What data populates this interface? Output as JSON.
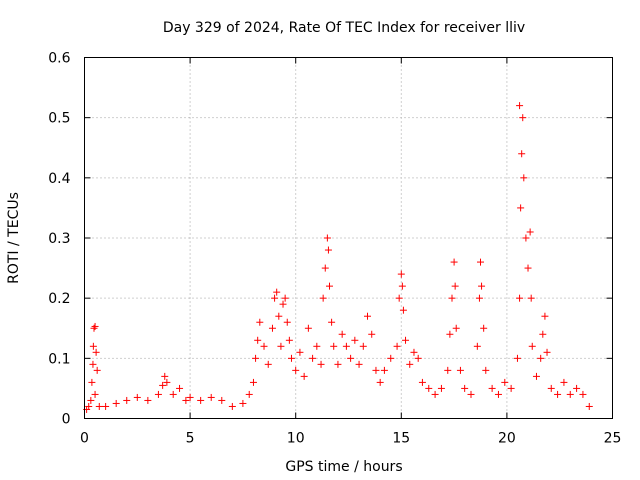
{
  "chart_data": {
    "type": "scatter",
    "title": "Day 329 of 2024, Rate Of TEC Index for receiver lliv",
    "xlabel": "GPS time / hours",
    "ylabel": "ROTI / TECUs",
    "xlim": [
      0,
      25
    ],
    "ylim": [
      0,
      0.6
    ],
    "x_ticks": [
      "0",
      "5",
      "10",
      "15",
      "20",
      "25"
    ],
    "y_ticks": [
      "0",
      "0.1",
      "0.2",
      "0.3",
      "0.4",
      "0.5",
      "0.6"
    ],
    "grid": true,
    "marker": "+",
    "color": "#ff0000",
    "series": [
      {
        "name": "ROTI",
        "points": [
          [
            0.1,
            0.015
          ],
          [
            0.2,
            0.02
          ],
          [
            0.3,
            0.03
          ],
          [
            0.35,
            0.06
          ],
          [
            0.4,
            0.09
          ],
          [
            0.42,
            0.12
          ],
          [
            0.45,
            0.15
          ],
          [
            0.5,
            0.153
          ],
          [
            0.55,
            0.11
          ],
          [
            0.6,
            0.08
          ],
          [
            0.5,
            0.04
          ],
          [
            0.7,
            0.02
          ],
          [
            1.0,
            0.02
          ],
          [
            1.5,
            0.025
          ],
          [
            2.0,
            0.03
          ],
          [
            2.5,
            0.035
          ],
          [
            3.0,
            0.03
          ],
          [
            3.5,
            0.04
          ],
          [
            3.7,
            0.055
          ],
          [
            3.8,
            0.07
          ],
          [
            3.9,
            0.06
          ],
          [
            4.2,
            0.04
          ],
          [
            4.5,
            0.05
          ],
          [
            4.8,
            0.03
          ],
          [
            5.0,
            0.035
          ],
          [
            5.5,
            0.03
          ],
          [
            6.0,
            0.035
          ],
          [
            6.5,
            0.03
          ],
          [
            7.0,
            0.02
          ],
          [
            7.5,
            0.025
          ],
          [
            7.8,
            0.04
          ],
          [
            8.0,
            0.06
          ],
          [
            8.1,
            0.1
          ],
          [
            8.2,
            0.13
          ],
          [
            8.3,
            0.16
          ],
          [
            8.5,
            0.12
          ],
          [
            8.7,
            0.09
          ],
          [
            8.9,
            0.15
          ],
          [
            9.0,
            0.2
          ],
          [
            9.1,
            0.21
          ],
          [
            9.2,
            0.17
          ],
          [
            9.3,
            0.12
          ],
          [
            9.4,
            0.19
          ],
          [
            9.5,
            0.2
          ],
          [
            9.6,
            0.16
          ],
          [
            9.7,
            0.13
          ],
          [
            9.8,
            0.1
          ],
          [
            10.0,
            0.08
          ],
          [
            10.2,
            0.11
          ],
          [
            10.4,
            0.07
          ],
          [
            10.6,
            0.15
          ],
          [
            10.8,
            0.1
          ],
          [
            11.0,
            0.12
          ],
          [
            11.2,
            0.09
          ],
          [
            11.3,
            0.2
          ],
          [
            11.4,
            0.25
          ],
          [
            11.5,
            0.3
          ],
          [
            11.55,
            0.28
          ],
          [
            11.6,
            0.22
          ],
          [
            11.7,
            0.16
          ],
          [
            11.8,
            0.12
          ],
          [
            12.0,
            0.09
          ],
          [
            12.2,
            0.14
          ],
          [
            12.4,
            0.12
          ],
          [
            12.6,
            0.1
          ],
          [
            12.8,
            0.13
          ],
          [
            13.0,
            0.09
          ],
          [
            13.2,
            0.12
          ],
          [
            13.4,
            0.17
          ],
          [
            13.6,
            0.14
          ],
          [
            13.8,
            0.08
          ],
          [
            14.0,
            0.06
          ],
          [
            14.2,
            0.08
          ],
          [
            14.5,
            0.1
          ],
          [
            14.8,
            0.12
          ],
          [
            14.9,
            0.2
          ],
          [
            15.0,
            0.24
          ],
          [
            15.05,
            0.22
          ],
          [
            15.1,
            0.18
          ],
          [
            15.2,
            0.13
          ],
          [
            15.4,
            0.09
          ],
          [
            15.6,
            0.11
          ],
          [
            15.8,
            0.1
          ],
          [
            16.0,
            0.06
          ],
          [
            16.3,
            0.05
          ],
          [
            16.6,
            0.04
          ],
          [
            16.9,
            0.05
          ],
          [
            17.2,
            0.08
          ],
          [
            17.3,
            0.14
          ],
          [
            17.4,
            0.2
          ],
          [
            17.5,
            0.26
          ],
          [
            17.55,
            0.22
          ],
          [
            17.6,
            0.15
          ],
          [
            17.8,
            0.08
          ],
          [
            18.0,
            0.05
          ],
          [
            18.3,
            0.04
          ],
          [
            18.6,
            0.12
          ],
          [
            18.7,
            0.2
          ],
          [
            18.75,
            0.26
          ],
          [
            18.8,
            0.22
          ],
          [
            18.9,
            0.15
          ],
          [
            19.0,
            0.08
          ],
          [
            19.3,
            0.05
          ],
          [
            19.6,
            0.04
          ],
          [
            19.9,
            0.06
          ],
          [
            20.2,
            0.05
          ],
          [
            20.5,
            0.1
          ],
          [
            20.6,
            0.2
          ],
          [
            20.65,
            0.35
          ],
          [
            20.7,
            0.44
          ],
          [
            20.75,
            0.5
          ],
          [
            20.6,
            0.52
          ],
          [
            20.8,
            0.4
          ],
          [
            20.9,
            0.3
          ],
          [
            21.0,
            0.25
          ],
          [
            21.1,
            0.31
          ],
          [
            21.15,
            0.2
          ],
          [
            21.2,
            0.12
          ],
          [
            21.4,
            0.07
          ],
          [
            21.6,
            0.1
          ],
          [
            21.7,
            0.14
          ],
          [
            21.8,
            0.17
          ],
          [
            21.9,
            0.11
          ],
          [
            22.1,
            0.05
          ],
          [
            22.4,
            0.04
          ],
          [
            22.7,
            0.06
          ],
          [
            23.0,
            0.04
          ],
          [
            23.3,
            0.05
          ],
          [
            23.6,
            0.04
          ],
          [
            23.9,
            0.02
          ]
        ]
      }
    ]
  }
}
